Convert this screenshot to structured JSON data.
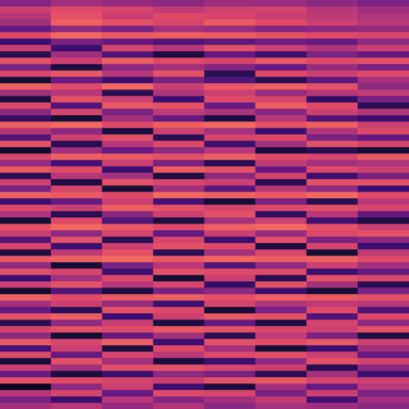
{
  "chart_data": {
    "type": "heatmap",
    "color": "magma",
    "tick_labels": false,
    "grid": false,
    "cells": [
      [
        0.38,
        0.45,
        0.42,
        0.4,
        0.44,
        0.43,
        0.4,
        0.36
      ],
      [
        0.55,
        0.6,
        0.58,
        0.52,
        0.56,
        0.57,
        0.5,
        0.45
      ],
      [
        0.5,
        0.62,
        0.55,
        0.6,
        0.58,
        0.54,
        0.52,
        0.48
      ],
      [
        0.45,
        0.66,
        0.62,
        0.58,
        0.64,
        0.6,
        0.55,
        0.5
      ],
      [
        0.3,
        0.4,
        0.35,
        0.45,
        0.42,
        0.38,
        0.4,
        0.42
      ],
      [
        0.6,
        0.68,
        0.64,
        0.66,
        0.65,
        0.62,
        0.6,
        0.58
      ],
      [
        0.2,
        0.35,
        0.3,
        0.25,
        0.28,
        0.32,
        0.3,
        0.4
      ],
      [
        0.55,
        0.2,
        0.58,
        0.5,
        0.62,
        0.55,
        0.48,
        0.55
      ],
      [
        0.15,
        0.45,
        0.25,
        0.12,
        0.3,
        0.2,
        0.35,
        0.3
      ],
      [
        0.62,
        0.55,
        0.66,
        0.6,
        0.58,
        0.64,
        0.6,
        0.62
      ],
      [
        0.35,
        0.12,
        0.4,
        0.45,
        0.38,
        0.3,
        0.42,
        0.35
      ],
      [
        0.58,
        0.64,
        0.5,
        0.62,
        0.15,
        0.6,
        0.55,
        0.6
      ],
      [
        0.1,
        0.3,
        0.2,
        0.35,
        0.25,
        0.15,
        0.28,
        0.45
      ],
      [
        0.66,
        0.6,
        0.68,
        0.55,
        0.64,
        0.66,
        0.62,
        0.4
      ],
      [
        0.45,
        0.5,
        0.15,
        0.48,
        0.55,
        0.42,
        0.5,
        0.52
      ],
      [
        0.12,
        0.62,
        0.55,
        0.2,
        0.6,
        0.58,
        0.18,
        0.35
      ],
      [
        0.6,
        0.25,
        0.64,
        0.62,
        0.3,
        0.65,
        0.6,
        0.15
      ],
      [
        0.4,
        0.58,
        0.35,
        0.52,
        0.48,
        0.38,
        0.55,
        0.5
      ],
      [
        0.18,
        0.1,
        0.45,
        0.3,
        0.12,
        0.5,
        0.25,
        0.2
      ],
      [
        0.65,
        0.68,
        0.6,
        0.66,
        0.68,
        0.62,
        0.66,
        0.55
      ],
      [
        0.5,
        0.4,
        0.12,
        0.55,
        0.45,
        0.2,
        0.48,
        0.6
      ],
      [
        0.25,
        0.55,
        0.62,
        0.15,
        0.58,
        0.6,
        0.35,
        0.3
      ],
      [
        0.62,
        0.15,
        0.5,
        0.6,
        0.2,
        0.45,
        0.62,
        0.58
      ],
      [
        0.08,
        0.45,
        0.3,
        0.4,
        0.5,
        0.12,
        0.15,
        0.1
      ],
      [
        0.58,
        0.66,
        0.64,
        0.62,
        0.66,
        0.6,
        0.58,
        0.64
      ],
      [
        0.42,
        0.22,
        0.55,
        0.35,
        0.15,
        0.52,
        0.45,
        0.48
      ],
      [
        0.64,
        0.6,
        0.2,
        0.65,
        0.62,
        0.3,
        0.6,
        0.55
      ],
      [
        0.15,
        0.5,
        0.45,
        0.12,
        0.4,
        0.58,
        0.2,
        0.35
      ],
      [
        0.55,
        0.12,
        0.62,
        0.58,
        0.55,
        0.15,
        0.62,
        0.62
      ],
      [
        0.35,
        0.58,
        0.1,
        0.45,
        0.28,
        0.5,
        0.4,
        0.2
      ],
      [
        0.66,
        0.64,
        0.6,
        0.68,
        0.66,
        0.64,
        0.68,
        0.6
      ],
      [
        0.2,
        0.3,
        0.55,
        0.22,
        0.1,
        0.35,
        0.15,
        0.5
      ],
      [
        0.6,
        0.55,
        0.66,
        0.62,
        0.58,
        0.6,
        0.62,
        0.58
      ],
      [
        0.48,
        0.15,
        0.4,
        0.55,
        0.62,
        0.18,
        0.5,
        0.3
      ],
      [
        0.1,
        0.6,
        0.25,
        0.12,
        0.45,
        0.55,
        0.22,
        0.12
      ],
      [
        0.62,
        0.68,
        0.64,
        0.6,
        0.66,
        0.68,
        0.62,
        0.55
      ],
      [
        0.55,
        0.4,
        0.58,
        0.3,
        0.55,
        0.42,
        0.6,
        0.62
      ],
      [
        0.25,
        0.62,
        0.15,
        0.58,
        0.2,
        0.62,
        0.35,
        0.4
      ],
      [
        0.58,
        0.2,
        0.55,
        0.62,
        0.6,
        0.12,
        0.58,
        0.2
      ],
      [
        0.12,
        0.52,
        0.62,
        0.15,
        0.45,
        0.58,
        0.1,
        0.52
      ],
      [
        0.64,
        0.66,
        0.68,
        0.64,
        0.68,
        0.65,
        0.66,
        0.6
      ],
      [
        0.4,
        0.1,
        0.35,
        0.5,
        0.25,
        0.4,
        0.55,
        0.45
      ],
      [
        0.62,
        0.58,
        0.2,
        0.62,
        0.6,
        0.6,
        0.2,
        0.3
      ],
      [
        0.2,
        0.45,
        0.6,
        0.1,
        0.55,
        0.15,
        0.62,
        0.58
      ],
      [
        0.55,
        0.62,
        0.5,
        0.58,
        0.18,
        0.62,
        0.45,
        0.15
      ],
      [
        0.08,
        0.25,
        0.12,
        0.35,
        0.4,
        0.2,
        0.1,
        0.35
      ],
      [
        0.66,
        0.6,
        0.64,
        0.66,
        0.62,
        0.66,
        0.64,
        0.62
      ],
      [
        0.45,
        0.55,
        0.42,
        0.2,
        0.58,
        0.48,
        0.52,
        0.5
      ],
      [
        0.3,
        0.15,
        0.62,
        0.6,
        0.1,
        0.35,
        0.6,
        0.25
      ],
      [
        0.62,
        0.66,
        0.2,
        0.55,
        0.64,
        0.62,
        0.25,
        0.6
      ],
      [
        0.15,
        0.4,
        0.55,
        0.12,
        0.3,
        0.12,
        0.58,
        0.4
      ],
      [
        0.58,
        0.62,
        0.6,
        0.64,
        0.62,
        0.58,
        0.55,
        0.62
      ],
      [
        0.4,
        0.1,
        0.3,
        0.45,
        0.15,
        0.52,
        0.35,
        0.12
      ],
      [
        0.64,
        0.58,
        0.66,
        0.2,
        0.62,
        0.6,
        0.64,
        0.55
      ],
      [
        0.22,
        0.55,
        0.12,
        0.6,
        0.45,
        0.1,
        0.2,
        0.45
      ],
      [
        0.6,
        0.3,
        0.58,
        0.5,
        0.6,
        0.62,
        0.55,
        0.3
      ],
      [
        0.1,
        0.62,
        0.45,
        0.12,
        0.2,
        0.4,
        0.62,
        0.58
      ],
      [
        0.55,
        0.45,
        0.62,
        0.62,
        0.58,
        0.55,
        0.15,
        0.4
      ],
      [
        0.3,
        0.12,
        0.2,
        0.4,
        0.35,
        0.15,
        0.45,
        0.2
      ],
      [
        0.62,
        0.6,
        0.58,
        0.55,
        0.62,
        0.64,
        0.58,
        0.55
      ],
      [
        0.05,
        0.4,
        0.55,
        0.2,
        0.12,
        0.45,
        0.3,
        0.5
      ],
      [
        0.5,
        0.58,
        0.3,
        0.6,
        0.58,
        0.35,
        0.55,
        0.35
      ],
      [
        0.35,
        0.2,
        0.5,
        0.38,
        0.45,
        0.52,
        0.22,
        0.45
      ],
      [
        0.45,
        0.5,
        0.42,
        0.48,
        0.4,
        0.46,
        0.44,
        0.4
      ]
    ]
  }
}
